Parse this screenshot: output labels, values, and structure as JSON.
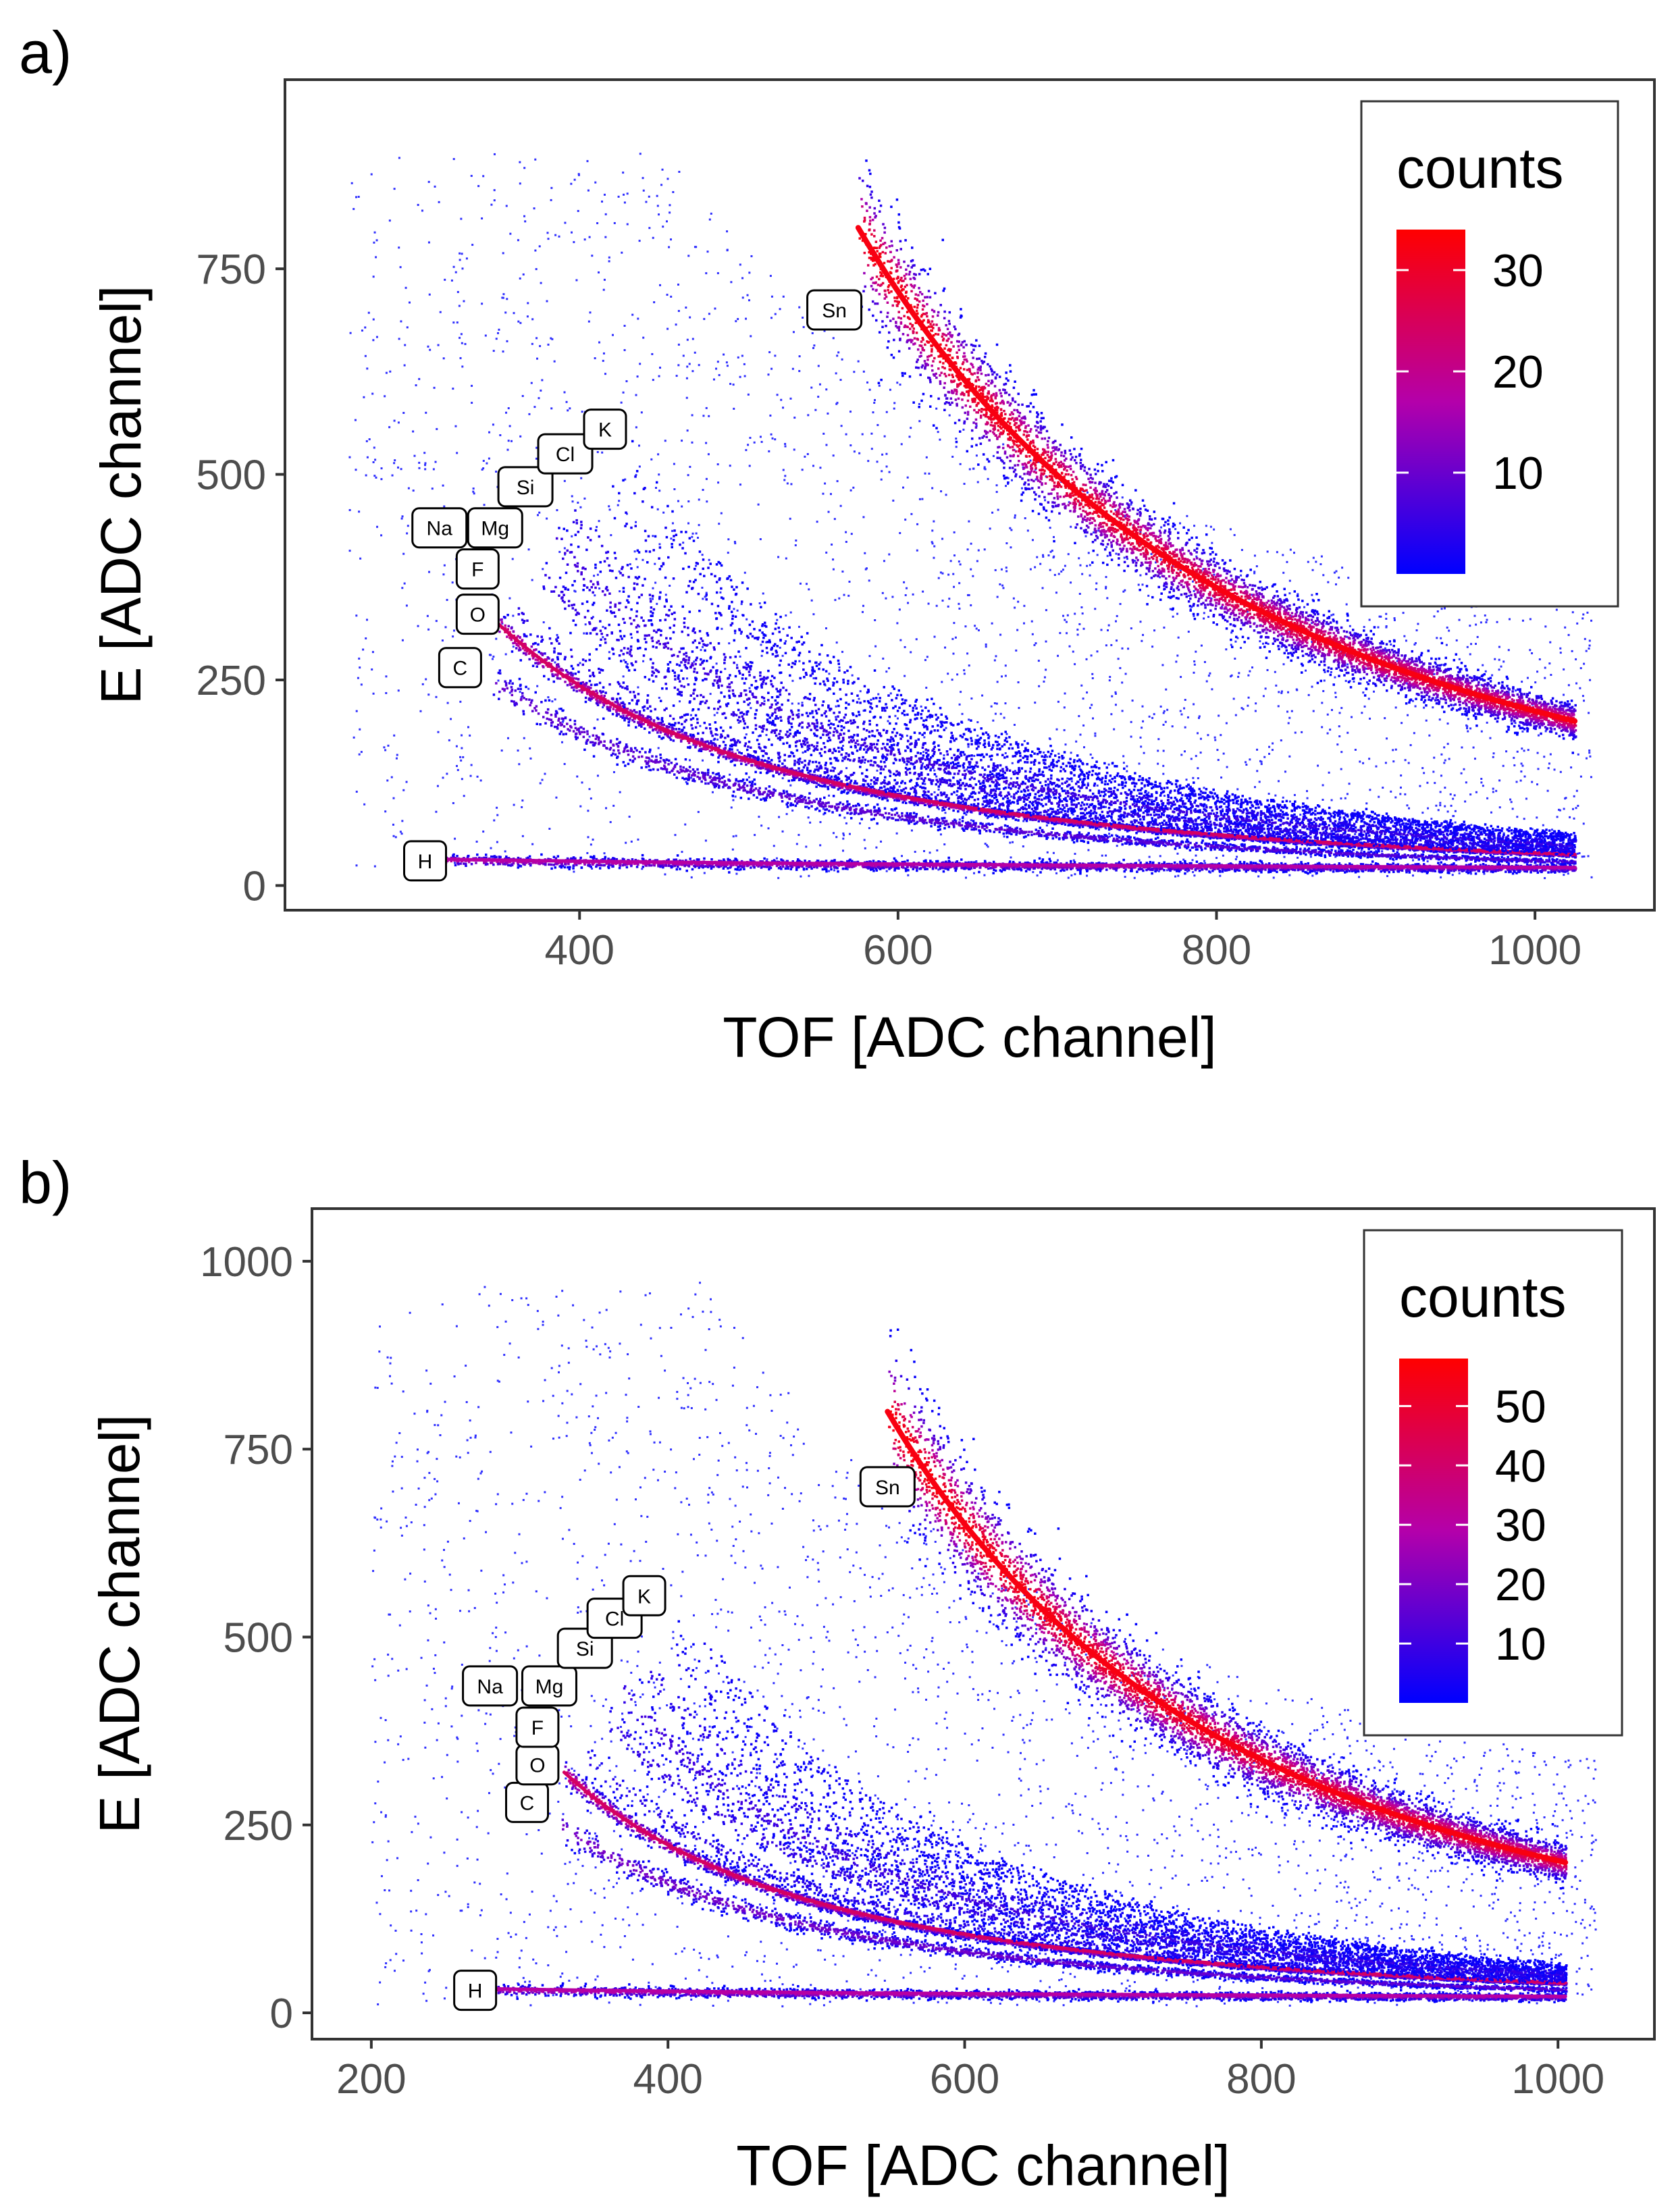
{
  "colors": {
    "low": "#0000ff",
    "mid": "#a000b4",
    "high": "#ff0000",
    "frame": "#333333"
  },
  "chart_data": [
    {
      "type": "heatmap",
      "panel_label": "a)",
      "title": "",
      "xlabel": "TOF [ADC channel]",
      "ylabel": "E [ADC channel]",
      "xlim": [
        215,
        1075
      ],
      "ylim": [
        -30,
        980
      ],
      "xticks": [
        400,
        600,
        800,
        1000
      ],
      "yticks": [
        0,
        250,
        500,
        750
      ],
      "legend": {
        "title": "counts",
        "ticks": [
          10,
          20,
          30
        ],
        "max": 34,
        "position": "top-right"
      },
      "bands": [
        {
          "element": "Sn",
          "label_x": 560,
          "label_y": 700,
          "x_start": 575,
          "x_end": 1025,
          "e_start": 800,
          "e_end": 200,
          "intensity": 1.0,
          "spread": 0.06
        },
        {
          "element": "H",
          "label_x": 303,
          "label_y": 30,
          "x_start": 313,
          "x_end": 1025,
          "e_start": 32,
          "e_end": 22,
          "intensity": 0.55,
          "spread": 0.12
        },
        {
          "element": "C",
          "label_x": 325,
          "label_y": 265,
          "x_start": 345,
          "x_end": 1025,
          "e_start": 250,
          "e_end": 30,
          "intensity": 0.3,
          "spread": 0.05
        },
        {
          "element": "O",
          "label_x": 336,
          "label_y": 330,
          "x_start": 348,
          "x_end": 1025,
          "e_start": 320,
          "e_end": 38,
          "intensity": 0.75,
          "spread": 0.03
        },
        {
          "element": "F",
          "label_x": 336,
          "label_y": 385,
          "x_start": 360,
          "x_end": 1025,
          "e_start": 335,
          "e_end": 42,
          "intensity": 0.12,
          "spread": 0.04
        },
        {
          "element": "Na",
          "label_x": 312,
          "label_y": 435,
          "x_start": 375,
          "x_end": 1025,
          "e_start": 380,
          "e_end": 45,
          "intensity": 0.15,
          "spread": 0.04
        },
        {
          "element": "Mg",
          "label_x": 347,
          "label_y": 435,
          "x_start": 382,
          "x_end": 1025,
          "e_start": 425,
          "e_end": 50,
          "intensity": 0.2,
          "spread": 0.04
        },
        {
          "element": "Si",
          "label_x": 366,
          "label_y": 485,
          "x_start": 395,
          "x_end": 1025,
          "e_start": 450,
          "e_end": 55,
          "intensity": 0.12,
          "spread": 0.04
        },
        {
          "element": "Cl",
          "label_x": 391,
          "label_y": 525,
          "x_start": 420,
          "x_end": 1025,
          "e_start": 470,
          "e_end": 60,
          "intensity": 0.06,
          "spread": 0.04
        },
        {
          "element": "K",
          "label_x": 416,
          "label_y": 555,
          "x_start": 430,
          "x_end": 1025,
          "e_start": 500,
          "e_end": 62,
          "intensity": 0.05,
          "spread": 0.04
        }
      ]
    },
    {
      "type": "heatmap",
      "panel_label": "b)",
      "title": "",
      "xlabel": "TOF [ADC channel]",
      "ylabel": "E [ADC channel]",
      "xlim": [
        160,
        1065
      ],
      "ylim": [
        -35,
        1070
      ],
      "xticks": [
        200,
        400,
        600,
        800,
        1000
      ],
      "yticks": [
        0,
        250,
        500,
        750,
        1000
      ],
      "legend": {
        "title": "counts",
        "ticks": [
          10,
          20,
          30,
          40,
          50
        ],
        "max": 58,
        "position": "top-right"
      },
      "bands": [
        {
          "element": "Sn",
          "label_x": 548,
          "label_y": 700,
          "x_start": 548,
          "x_end": 1005,
          "e_start": 800,
          "e_end": 200,
          "intensity": 1.0,
          "spread": 0.07
        },
        {
          "element": "H",
          "label_x": 270,
          "label_y": 30,
          "x_start": 282,
          "x_end": 1005,
          "e_start": 32,
          "e_end": 22,
          "intensity": 0.55,
          "spread": 0.12
        },
        {
          "element": "C",
          "label_x": 305,
          "label_y": 280,
          "x_start": 328,
          "x_end": 1005,
          "e_start": 250,
          "e_end": 32,
          "intensity": 0.35,
          "spread": 0.05
        },
        {
          "element": "O",
          "label_x": 312,
          "label_y": 330,
          "x_start": 330,
          "x_end": 1005,
          "e_start": 320,
          "e_end": 40,
          "intensity": 0.75,
          "spread": 0.03
        },
        {
          "element": "F",
          "label_x": 312,
          "label_y": 380,
          "x_start": 345,
          "x_end": 1005,
          "e_start": 340,
          "e_end": 44,
          "intensity": 0.12,
          "spread": 0.04
        },
        {
          "element": "Na",
          "label_x": 280,
          "label_y": 435,
          "x_start": 360,
          "x_end": 1005,
          "e_start": 390,
          "e_end": 48,
          "intensity": 0.15,
          "spread": 0.04
        },
        {
          "element": "Mg",
          "label_x": 320,
          "label_y": 435,
          "x_start": 368,
          "x_end": 1005,
          "e_start": 430,
          "e_end": 52,
          "intensity": 0.2,
          "spread": 0.04
        },
        {
          "element": "Si",
          "label_x": 344,
          "label_y": 485,
          "x_start": 385,
          "x_end": 1005,
          "e_start": 460,
          "e_end": 56,
          "intensity": 0.12,
          "spread": 0.04
        },
        {
          "element": "Cl",
          "label_x": 364,
          "label_y": 525,
          "x_start": 405,
          "x_end": 1005,
          "e_start": 480,
          "e_end": 60,
          "intensity": 0.06,
          "spread": 0.04
        },
        {
          "element": "K",
          "label_x": 384,
          "label_y": 555,
          "x_start": 420,
          "x_end": 1005,
          "e_start": 500,
          "e_end": 64,
          "intensity": 0.05,
          "spread": 0.04
        }
      ]
    }
  ]
}
